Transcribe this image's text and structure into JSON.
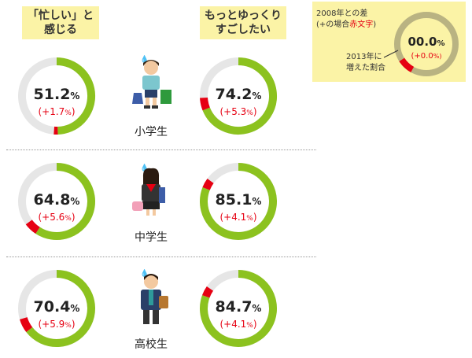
{
  "headers": {
    "busy": [
      "「忙しい」と",
      "感じる"
    ],
    "relax": [
      "もっとゆっくり",
      "すごしたい"
    ]
  },
  "legend": {
    "line1": "2008年との差",
    "line2_prefix": "(+の場合",
    "line2_red": "赤文字",
    "line2_suffix": ")",
    "line3": "2013年に",
    "line4": "増えた割合",
    "value": "00.0",
    "diff": "(+0.0",
    "pct": "%",
    "diff_pct": "%)"
  },
  "chart_data": {
    "type": "donut",
    "categories": [
      "小学生",
      "中学生",
      "高校生"
    ],
    "series": [
      {
        "name": "「忙しい」と感じる",
        "values": [
          51.2,
          64.8,
          70.4
        ],
        "change_since_2008": [
          1.7,
          5.6,
          5.9
        ]
      },
      {
        "name": "もっとゆっくりすごしたい",
        "values": [
          74.2,
          85.1,
          84.7
        ],
        "change_since_2008": [
          5.3,
          4.1,
          4.1
        ]
      }
    ],
    "unit": "%"
  },
  "colors": {
    "green": "#8cc21f",
    "red": "#e60012",
    "track": "#e6e6e6",
    "legend_ring": "#b9b382",
    "header_bg": "#fbf3a6",
    "label_red": "#e60012"
  },
  "icons": [
    "elementary-student-icon",
    "middle-school-student-icon",
    "high-school-student-icon"
  ]
}
